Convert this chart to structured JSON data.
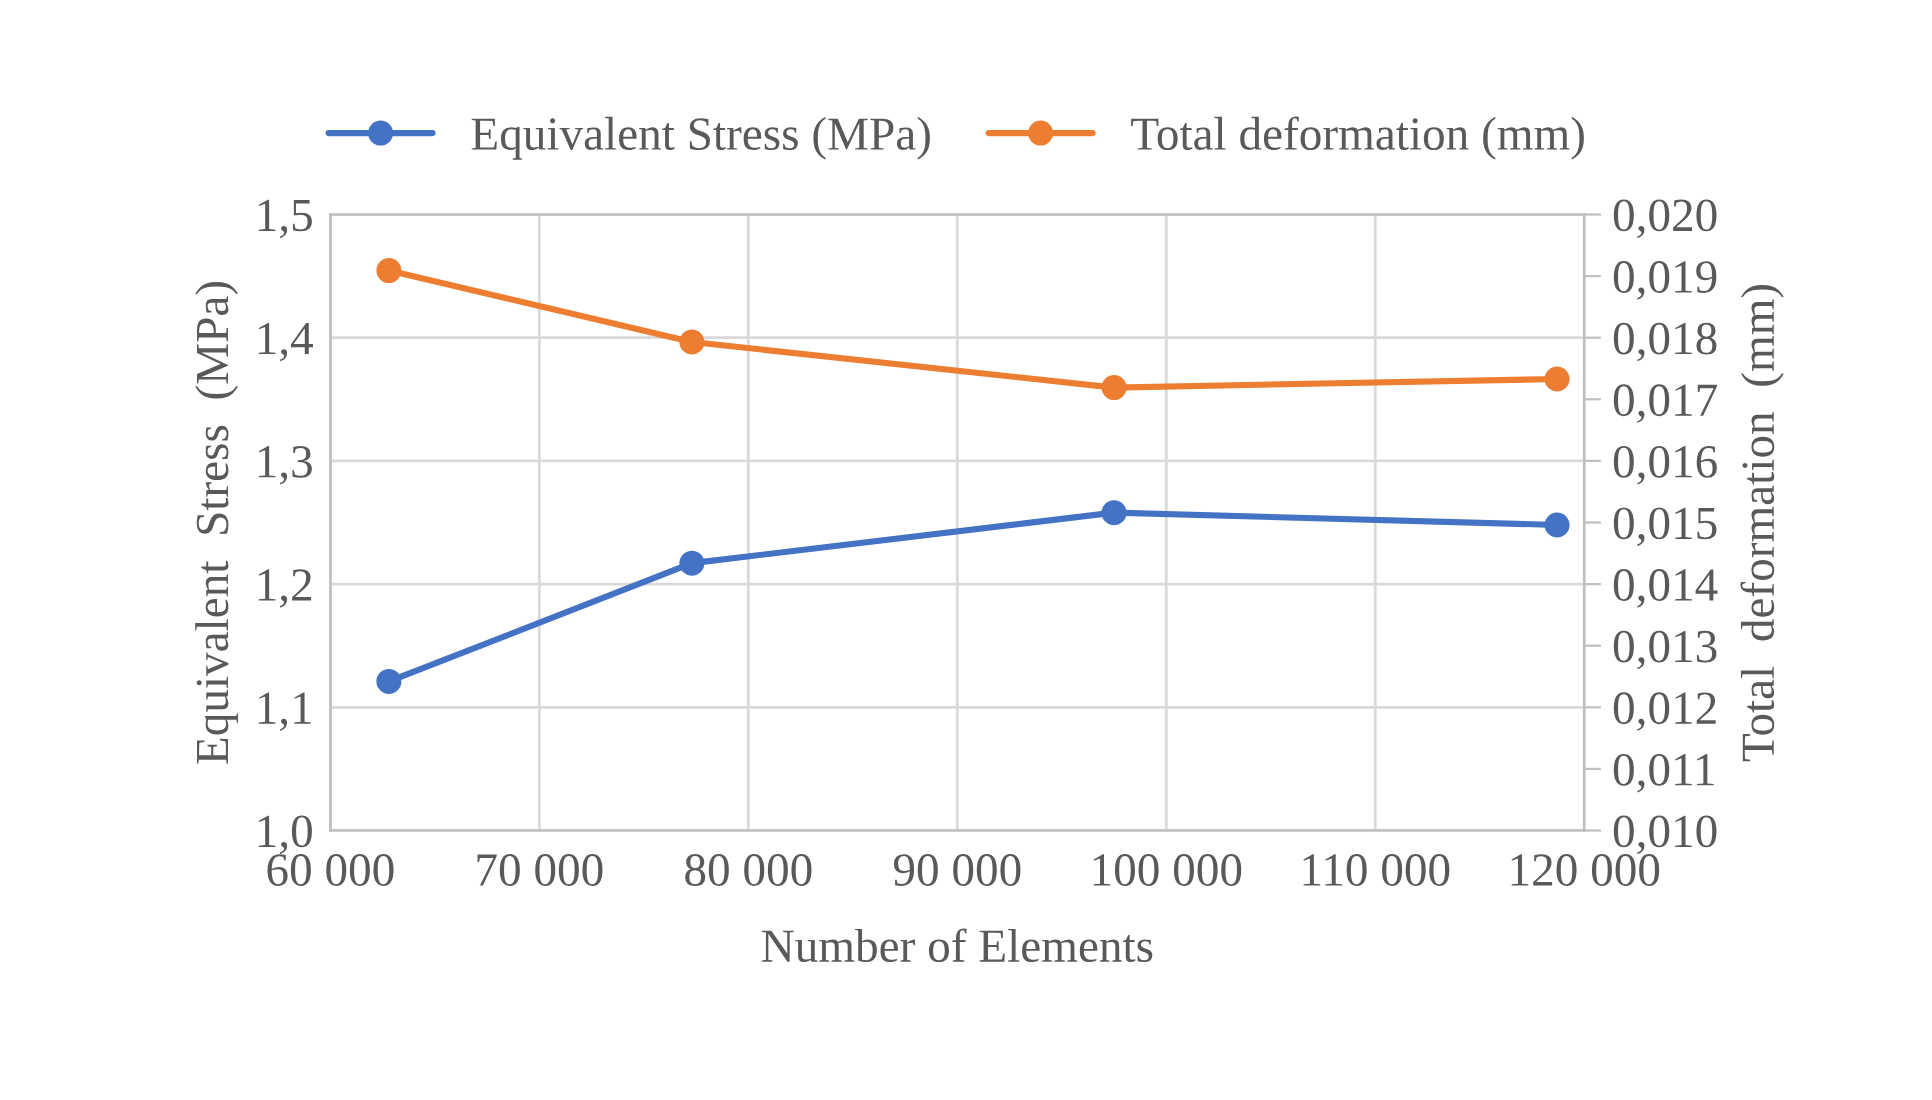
{
  "chart_data": {
    "type": "line",
    "xlabel": "Number of Elements",
    "ylabel": "Equivalent  Stress  (MPa)",
    "y2label": "Total  deformation  (mm)",
    "x": [
      62800,
      77300,
      97500,
      118700
    ],
    "series": [
      {
        "name": "Equivalent Stress (MPa)",
        "color": "#4472c4",
        "values": [
          1.121,
          1.217,
          1.258,
          1.248
        ]
      },
      {
        "name": "Total deformation (mm)",
        "color": "#ed7d31",
        "axis": "y2",
        "values": [
          0.01909,
          0.01793,
          0.01719,
          0.01733
        ]
      }
    ],
    "xlim": [
      60000,
      120000
    ],
    "xticks": [
      {
        "value": 60000,
        "label": "60 000"
      },
      {
        "value": 70000,
        "label": "70 000"
      },
      {
        "value": 80000,
        "label": "80 000"
      },
      {
        "value": 90000,
        "label": "90 000"
      },
      {
        "value": 100000,
        "label": "100 000"
      },
      {
        "value": 110000,
        "label": "110 000"
      },
      {
        "value": 120000,
        "label": "120 000"
      }
    ],
    "ylim": [
      1.0,
      1.5
    ],
    "yticks": [
      {
        "value": 1.0,
        "label": "1,0"
      },
      {
        "value": 1.1,
        "label": "1,1"
      },
      {
        "value": 1.2,
        "label": "1,2"
      },
      {
        "value": 1.3,
        "label": "1,3"
      },
      {
        "value": 1.4,
        "label": "1,4"
      },
      {
        "value": 1.5,
        "label": "1,5"
      }
    ],
    "y2lim": [
      0.01,
      0.02
    ],
    "y2ticks": [
      {
        "value": 0.01,
        "label": "0,010"
      },
      {
        "value": 0.011,
        "label": "0,011"
      },
      {
        "value": 0.012,
        "label": "0,012"
      },
      {
        "value": 0.013,
        "label": "0,013"
      },
      {
        "value": 0.014,
        "label": "0,014"
      },
      {
        "value": 0.015,
        "label": "0,015"
      },
      {
        "value": 0.016,
        "label": "0,016"
      },
      {
        "value": 0.017,
        "label": "0,017"
      },
      {
        "value": 0.018,
        "label": "0,018"
      },
      {
        "value": 0.019,
        "label": "0,019"
      },
      {
        "value": 0.02,
        "label": "0,020"
      }
    ],
    "grid": true,
    "legend": "top",
    "marker": "circle",
    "line_style": "solid"
  }
}
